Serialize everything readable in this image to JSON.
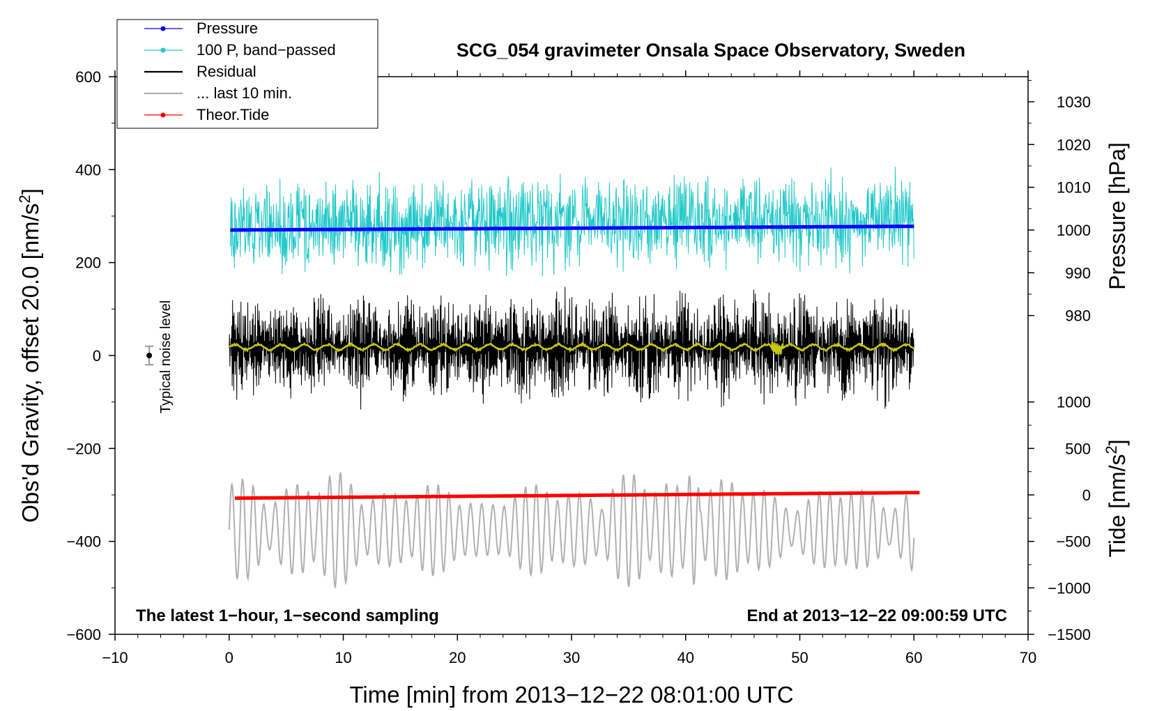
{
  "chart_data": {
    "type": "line",
    "title": "SCG_054 gravimeter Onsala Space Observatory, Sweden",
    "xlabel": "Time [min] from 2013−12−22 08:01:00 UTC",
    "ylabel_main": "Obs'd Gravity, offset 20.0 [nm/s",
    "ylabel_sup": "2",
    "ylabel_close": "]",
    "ylabel_pressure": "Pressure [hPa]",
    "ylabel_tide_main": "Tide [nm/s",
    "ylabel_tide_sup": "2",
    "ylabel_tide_close": "]",
    "xlim": [
      -10,
      70
    ],
    "ylim": [
      -600,
      600
    ],
    "xticks": [
      "−10",
      "0",
      "10",
      "20",
      "30",
      "40",
      "50",
      "60",
      "70"
    ],
    "xtick_values": [
      -10,
      0,
      10,
      20,
      30,
      40,
      50,
      60,
      70
    ],
    "yticks": [
      "−600",
      "−400",
      "−200",
      "0",
      "200",
      "400",
      "600"
    ],
    "ytick_values": [
      -600,
      -400,
      -200,
      0,
      200,
      400,
      600
    ],
    "pressure_axis": {
      "ticks": [
        "980",
        "990",
        "1000",
        "1010",
        "1020",
        "1030"
      ],
      "tick_values": [
        980,
        990,
        1000,
        1010,
        1020,
        1030
      ],
      "gravity_at_1000": 270,
      "gravity_per_hpa": 9.2
    },
    "tide_axis": {
      "ticks": [
        "1000",
        "500",
        "0",
        "−500",
        "−1000",
        "−1500"
      ],
      "tick_values": [
        1000,
        500,
        0,
        -500,
        -1000,
        -1500
      ],
      "gravity_at_0": -300,
      "gravity_per_unit": 0.2
    },
    "legend": [
      {
        "label": "Pressure",
        "color": "#0000ff",
        "marker": true
      },
      {
        "label": "100 P, band−passed",
        "color": "#20c8c8",
        "marker": true
      },
      {
        "label": "Residual",
        "color": "#000000",
        "marker": false
      },
      {
        "label": "... last 10 min.",
        "color": "#b0b0b0",
        "marker": false
      },
      {
        "label": "Theor.Tide",
        "color": "#ff0000",
        "marker": true
      }
    ],
    "annotation_left": "The latest 1−hour, 1−second sampling",
    "annotation_right": "End at 2013−12−22 09:00:59 UTC",
    "noise_label": "Typical noise level",
    "noise_marker": {
      "x": -7,
      "y": 0,
      "err": 20
    },
    "series": [
      {
        "name": "Pressure",
        "color": "#0000ff",
        "x_range": [
          0.1,
          60
        ],
        "y_start": 270,
        "y_end": 278
      },
      {
        "name": "100 P, band−passed",
        "color": "#20c8c8",
        "x_range": [
          0.1,
          60
        ],
        "center": 272,
        "amplitude": 75
      },
      {
        "name": "Residual",
        "color": "#000000",
        "x_range": [
          0,
          60
        ],
        "center": 18,
        "amplitude": 120
      },
      {
        "name": "Residual (smoothed)",
        "color": "#c8c814",
        "x_range": [
          0,
          60
        ],
        "center": 18,
        "amplitude": 8
      },
      {
        "name": "Theor.Tide",
        "color": "#ff0000",
        "x_range": [
          0.5,
          60.5
        ],
        "y_start": -307,
        "y_end": -295
      },
      {
        "name": "... last 10 min.",
        "color": "#b0b0b0",
        "x_range": [
          0,
          60
        ],
        "center": -375,
        "amplitude": 110
      }
    ]
  }
}
